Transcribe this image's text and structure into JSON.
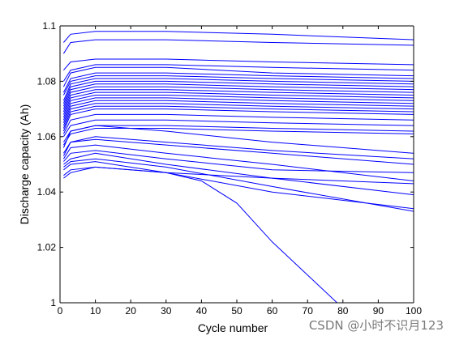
{
  "chart_data": {
    "type": "line",
    "title": "",
    "xlabel": "Cycle number",
    "ylabel": "Discharge capacity (Ah)",
    "xlim": [
      0,
      100
    ],
    "ylim": [
      1.0,
      1.1
    ],
    "xticks": [
      0,
      10,
      20,
      30,
      40,
      50,
      60,
      70,
      80,
      90,
      100
    ],
    "yticks": [
      1,
      1.02,
      1.04,
      1.06,
      1.08,
      1.1
    ],
    "ytick_labels": [
      "1",
      "1.02",
      "1.04",
      "1.06",
      "1.08",
      "1.1"
    ],
    "grid": false,
    "legend": "none",
    "line_color": "#0000ff",
    "series_description": "many cells, each one line of capacity vs cycle (cycles 1-100)",
    "series": [
      {
        "x": [
          1,
          3,
          10,
          30,
          60,
          100
        ],
        "y": [
          1.094,
          1.097,
          1.098,
          1.098,
          1.097,
          1.095
        ]
      },
      {
        "x": [
          1,
          3,
          10,
          30,
          60,
          100
        ],
        "y": [
          1.09,
          1.094,
          1.095,
          1.095,
          1.094,
          1.093
        ]
      },
      {
        "x": [
          1,
          3,
          10,
          30,
          60,
          100
        ],
        "y": [
          1.084,
          1.087,
          1.088,
          1.088,
          1.087,
          1.086
        ]
      },
      {
        "x": [
          1,
          3,
          10,
          30,
          60,
          100
        ],
        "y": [
          1.08,
          1.084,
          1.086,
          1.086,
          1.085,
          1.084
        ]
      },
      {
        "x": [
          1,
          3,
          10,
          30,
          60,
          100
        ],
        "y": [
          1.078,
          1.083,
          1.085,
          1.085,
          1.083,
          1.082
        ]
      },
      {
        "x": [
          1,
          3,
          10,
          30,
          60,
          100
        ],
        "y": [
          1.076,
          1.081,
          1.083,
          1.083,
          1.082,
          1.081
        ]
      },
      {
        "x": [
          1,
          3,
          10,
          30,
          60,
          100
        ],
        "y": [
          1.075,
          1.08,
          1.082,
          1.082,
          1.081,
          1.08
        ]
      },
      {
        "x": [
          1,
          3,
          10,
          30,
          60,
          100
        ],
        "y": [
          1.073,
          1.079,
          1.081,
          1.081,
          1.08,
          1.079
        ]
      },
      {
        "x": [
          1,
          3,
          10,
          30,
          60,
          100
        ],
        "y": [
          1.072,
          1.078,
          1.08,
          1.08,
          1.079,
          1.078
        ]
      },
      {
        "x": [
          1,
          3,
          10,
          30,
          60,
          100
        ],
        "y": [
          1.071,
          1.077,
          1.079,
          1.079,
          1.078,
          1.077
        ]
      },
      {
        "x": [
          1,
          3,
          10,
          30,
          60,
          100
        ],
        "y": [
          1.07,
          1.076,
          1.078,
          1.078,
          1.077,
          1.076
        ]
      },
      {
        "x": [
          1,
          3,
          10,
          30,
          60,
          100
        ],
        "y": [
          1.069,
          1.075,
          1.077,
          1.077,
          1.076,
          1.075
        ]
      },
      {
        "x": [
          1,
          3,
          10,
          30,
          60,
          100
        ],
        "y": [
          1.068,
          1.074,
          1.076,
          1.076,
          1.075,
          1.074
        ]
      },
      {
        "x": [
          1,
          3,
          10,
          30,
          60,
          100
        ],
        "y": [
          1.067,
          1.073,
          1.075,
          1.075,
          1.074,
          1.073
        ]
      },
      {
        "x": [
          1,
          3,
          10,
          30,
          60,
          100
        ],
        "y": [
          1.066,
          1.072,
          1.074,
          1.074,
          1.073,
          1.072
        ]
      },
      {
        "x": [
          1,
          3,
          10,
          30,
          60,
          100
        ],
        "y": [
          1.065,
          1.071,
          1.073,
          1.073,
          1.072,
          1.071
        ]
      },
      {
        "x": [
          1,
          3,
          10,
          30,
          60,
          100
        ],
        "y": [
          1.064,
          1.07,
          1.072,
          1.072,
          1.071,
          1.07
        ]
      },
      {
        "x": [
          1,
          3,
          10,
          30,
          60,
          100
        ],
        "y": [
          1.063,
          1.069,
          1.071,
          1.071,
          1.07,
          1.069
        ]
      },
      {
        "x": [
          1,
          3,
          10,
          30,
          60,
          100
        ],
        "y": [
          1.062,
          1.068,
          1.07,
          1.07,
          1.069,
          1.068
        ]
      },
      {
        "x": [
          1,
          3,
          10,
          30,
          60,
          100
        ],
        "y": [
          1.061,
          1.066,
          1.068,
          1.068,
          1.067,
          1.066
        ]
      },
      {
        "x": [
          1,
          3,
          10,
          30,
          60,
          100
        ],
        "y": [
          1.06,
          1.064,
          1.066,
          1.066,
          1.065,
          1.064
        ]
      },
      {
        "x": [
          1,
          3,
          10,
          30,
          60,
          100
        ],
        "y": [
          1.058,
          1.062,
          1.064,
          1.064,
          1.063,
          1.062
        ]
      },
      {
        "x": [
          1,
          3,
          10,
          30,
          60,
          100
        ],
        "y": [
          1.057,
          1.061,
          1.063,
          1.063,
          1.062,
          1.061
        ]
      },
      {
        "x": [
          1,
          3,
          10,
          30,
          60,
          100
        ],
        "y": [
          1.056,
          1.062,
          1.064,
          1.062,
          1.058,
          1.054
        ]
      },
      {
        "x": [
          1,
          3,
          10,
          30,
          60,
          100
        ],
        "y": [
          1.054,
          1.058,
          1.06,
          1.058,
          1.055,
          1.052
        ]
      },
      {
        "x": [
          1,
          3,
          10,
          30,
          60,
          100
        ],
        "y": [
          1.053,
          1.058,
          1.059,
          1.057,
          1.054,
          1.05
        ]
      },
      {
        "x": [
          1,
          3,
          10,
          30,
          60,
          100
        ],
        "y": [
          1.052,
          1.056,
          1.057,
          1.054,
          1.05,
          1.044
        ]
      },
      {
        "x": [
          1,
          3,
          10,
          30,
          60,
          100
        ],
        "y": [
          1.051,
          1.054,
          1.055,
          1.052,
          1.048,
          1.047
        ]
      },
      {
        "x": [
          1,
          3,
          10,
          30,
          60,
          100
        ],
        "y": [
          1.05,
          1.052,
          1.054,
          1.05,
          1.045,
          1.039
        ]
      },
      {
        "x": [
          1,
          3,
          10,
          30,
          60,
          100
        ],
        "y": [
          1.049,
          1.051,
          1.052,
          1.049,
          1.042,
          1.033
        ]
      },
      {
        "x": [
          1,
          3,
          10,
          30,
          60,
          100
        ],
        "y": [
          1.048,
          1.05,
          1.051,
          1.047,
          1.04,
          1.034
        ]
      },
      {
        "x": [
          1,
          3,
          10,
          30,
          60,
          100
        ],
        "y": [
          1.046,
          1.048,
          1.049,
          1.047,
          1.045,
          1.043
        ]
      },
      {
        "x": [
          1,
          3,
          10,
          20,
          30,
          40,
          50,
          60,
          70,
          80
        ],
        "y": [
          1.045,
          1.047,
          1.049,
          1.048,
          1.047,
          1.044,
          1.036,
          1.022,
          1.01,
          0.998
        ]
      }
    ]
  },
  "watermark": {
    "text": "CSDN @小时不识月123"
  }
}
